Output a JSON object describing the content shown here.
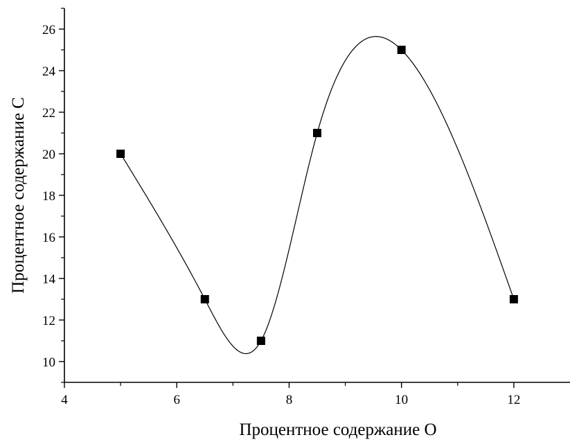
{
  "chart_data": {
    "type": "scatter",
    "xlabel": "Процентное содержание O",
    "ylabel": "Процентное содержание C",
    "xlim": [
      4,
      13
    ],
    "ylim": [
      9,
      27
    ],
    "xticks": [
      4,
      6,
      8,
      10,
      12
    ],
    "yticks": [
      10,
      12,
      14,
      16,
      18,
      20,
      22,
      24,
      26
    ],
    "grid": false,
    "legend": "none",
    "marker": "filled-square",
    "fit_line": "smooth-spline",
    "colors": {
      "marker": "#000000",
      "line": "#000000"
    },
    "series": [
      {
        "x": [
          5,
          6.5,
          7.5,
          8.5,
          10,
          12
        ],
        "y": [
          20,
          13,
          11,
          21,
          25,
          13
        ]
      }
    ]
  }
}
